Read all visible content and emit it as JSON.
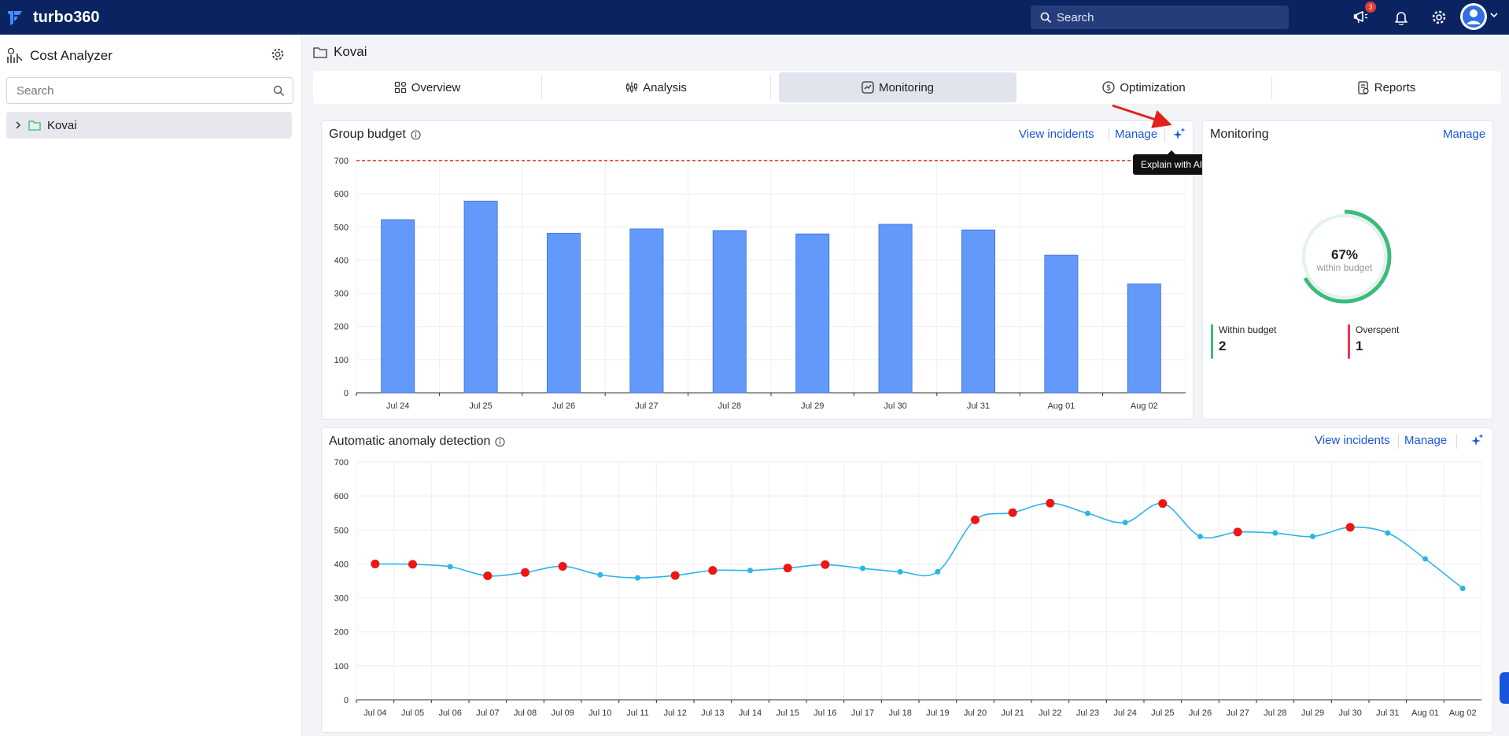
{
  "app": {
    "name": "turbo360",
    "brand_color": "#0b2461"
  },
  "topbar": {
    "search_placeholder": "Search",
    "notification_count": "3",
    "icons": [
      "search-icon",
      "megaphone-icon",
      "bell-icon",
      "gear-icon",
      "user-avatar-icon",
      "chevron-down-icon"
    ]
  },
  "sidebar": {
    "title": "Cost Analyzer",
    "search_placeholder": "Search",
    "tree": [
      {
        "label": "Kovai",
        "expanded": false
      }
    ]
  },
  "breadcrumb": {
    "label": "Kovai"
  },
  "tabs": [
    {
      "label": "Overview",
      "icon": "grid-icon",
      "active": false
    },
    {
      "label": "Analysis",
      "icon": "analysis-icon",
      "active": false
    },
    {
      "label": "Monitoring",
      "icon": "monitoring-icon",
      "active": true
    },
    {
      "label": "Optimization",
      "icon": "dollar-icon",
      "active": false
    },
    {
      "label": "Reports",
      "icon": "report-icon",
      "active": false
    }
  ],
  "group_budget": {
    "title": "Group budget",
    "view_incidents": "View incidents",
    "manage": "Manage",
    "tooltip": "Explain with AI"
  },
  "monitoring": {
    "title": "Monitoring",
    "manage": "Manage",
    "percent": "67%",
    "percent_value": 67,
    "caption": "within budget",
    "within_label": "Within budget",
    "within_count": "2",
    "over_label": "Overspent",
    "over_count": "1",
    "colors": {
      "within": "#3dbb7b",
      "over": "#e53950"
    }
  },
  "anomaly": {
    "title": "Automatic anomaly detection",
    "view_incidents": "View incidents",
    "manage": "Manage"
  },
  "chart_data": [
    {
      "type": "bar",
      "title": "Group budget",
      "categories": [
        "Jul 24",
        "Jul 25",
        "Jul 26",
        "Jul 27",
        "Jul 28",
        "Jul 29",
        "Jul 30",
        "Jul 31",
        "Aug 01",
        "Aug 02"
      ],
      "values": [
        522,
        578,
        481,
        494,
        489,
        479,
        508,
        491,
        415,
        328
      ],
      "budget_line": 700,
      "ylim": [
        0,
        700
      ],
      "yticks": [
        0,
        100,
        200,
        300,
        400,
        500,
        600,
        700
      ],
      "grid": true,
      "bar_color": "#6399fa",
      "budget_color": "#e0201b"
    },
    {
      "type": "line",
      "title": "Automatic anomaly detection",
      "categories": [
        "Jul 04",
        "Jul 05",
        "Jul 06",
        "Jul 07",
        "Jul 08",
        "Jul 09",
        "Jul 10",
        "Jul 11",
        "Jul 12",
        "Jul 13",
        "Jul 14",
        "Jul 15",
        "Jul 16",
        "Jul 17",
        "Jul 18",
        "Jul 19",
        "Jul 20",
        "Jul 21",
        "Jul 22",
        "Jul 23",
        "Jul 24",
        "Jul 25",
        "Jul 26",
        "Jul 27",
        "Jul 28",
        "Jul 29",
        "Jul 30",
        "Jul 31",
        "Aug 01",
        "Aug 02"
      ],
      "values": [
        400,
        399,
        392,
        365,
        375,
        393,
        368,
        359,
        366,
        381,
        381,
        388,
        398,
        387,
        377,
        377,
        530,
        551,
        579,
        549,
        522,
        578,
        481,
        494,
        491,
        481,
        508,
        491,
        415,
        328
      ],
      "anomalies": [
        true,
        true,
        false,
        true,
        true,
        true,
        false,
        false,
        true,
        true,
        false,
        true,
        true,
        false,
        false,
        false,
        true,
        true,
        true,
        false,
        false,
        true,
        false,
        true,
        false,
        false,
        true,
        false,
        false,
        false
      ],
      "ylim": [
        0,
        700
      ],
      "yticks": [
        0,
        100,
        200,
        300,
        400,
        500,
        600,
        700
      ],
      "grid": true,
      "line_color": "#29b6e8",
      "anomaly_color": "#f01414"
    }
  ]
}
